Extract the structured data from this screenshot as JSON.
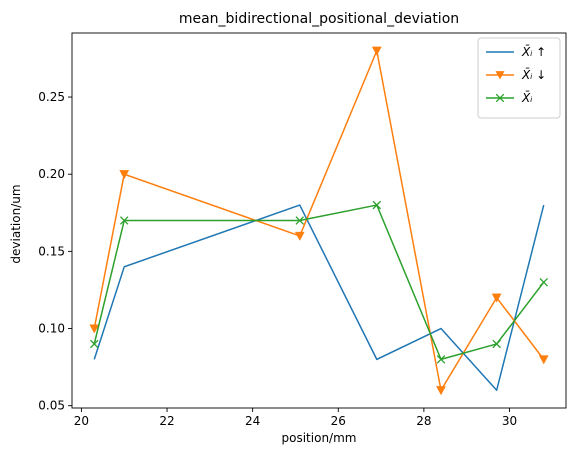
{
  "chart_data": {
    "type": "line",
    "title": "mean_bidirectional_positional_deviation",
    "xlabel": "position/mm",
    "ylabel": "deviation/um",
    "xlim": [
      19.78,
      31.32
    ],
    "ylim": [
      0.0485,
      0.2915
    ],
    "x_ticks": [
      20,
      22,
      24,
      26,
      28,
      30
    ],
    "x_tick_labels": [
      "20",
      "22",
      "24",
      "26",
      "28",
      "30"
    ],
    "y_ticks": [
      0.05,
      0.1,
      0.15,
      0.2,
      0.25
    ],
    "y_tick_labels": [
      "0.05",
      "0.10",
      "0.15",
      "0.20",
      "0.25"
    ],
    "grid": false,
    "legend_position": "top-right",
    "x": [
      20.3,
      21.0,
      25.1,
      26.9,
      28.4,
      29.7,
      30.8
    ],
    "series": [
      {
        "name": "X̄ᵢ ↑",
        "color": "#1f77b4",
        "marker": "none",
        "values": [
          0.08,
          0.14,
          0.18,
          0.08,
          0.1,
          0.06,
          0.18
        ]
      },
      {
        "name": "X̄ᵢ ↓",
        "color": "#ff7f0e",
        "marker": "triangle-down",
        "values": [
          0.1,
          0.2,
          0.16,
          0.28,
          0.06,
          0.12,
          0.08
        ]
      },
      {
        "name": "X̄ᵢ",
        "color": "#2ca02c",
        "marker": "x",
        "values": [
          0.09,
          0.17,
          0.17,
          0.18,
          0.08,
          0.09,
          0.13
        ]
      }
    ]
  }
}
